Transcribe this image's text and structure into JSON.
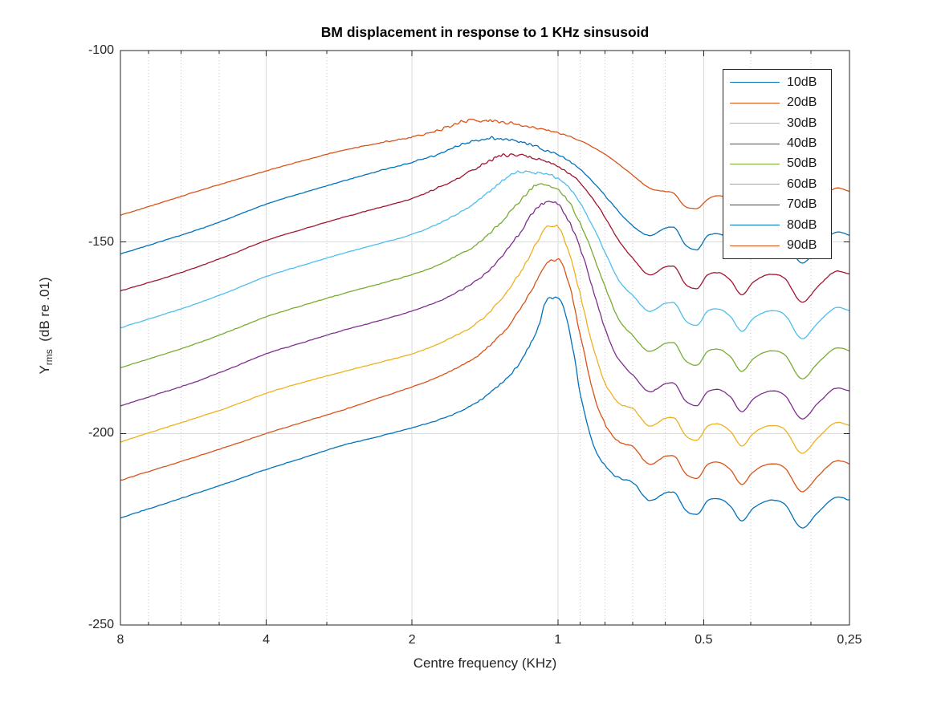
{
  "figure": {
    "title": "BM displacement in response to 1 KHz sinsusoid",
    "xlabel": "Centre frequency (KHz)",
    "ylabel_main": "Y",
    "ylabel_sub": "rms",
    "ylabel_rest": "  (dB re .01)"
  },
  "colors": {
    "background": "#ffffff",
    "axis": "#262626",
    "grid_major": "#dbdbdb",
    "grid_minor": "#c9c9c9",
    "text": "#262626"
  },
  "legend": {
    "position": "upper-right-inside",
    "entries": [
      {
        "label": "10dB",
        "color": "#0072BD"
      },
      {
        "label": "20dB",
        "color": "#D95319"
      },
      {
        "label": "30dB",
        "color": "#EDB120"
      },
      {
        "label": "40dB",
        "color": "#7E2F8E"
      },
      {
        "label": "50dB",
        "color": "#77AC30"
      },
      {
        "label": "60dB",
        "color": "#4DBEEE"
      },
      {
        "label": "70dB",
        "color": "#A2142F"
      },
      {
        "label": "80dB",
        "color": "#0072BD"
      },
      {
        "label": "90dB",
        "color": "#D95319"
      }
    ]
  },
  "chart_data": {
    "type": "line",
    "title": "BM displacement in response to 1 KHz sinsusoid",
    "xlabel": "Centre frequency (KHz)",
    "ylabel": "Y_rms (dB re .01)",
    "x_scale": "log2_reversed",
    "xlim": [
      8,
      0.25
    ],
    "ylim": [
      -250,
      -100
    ],
    "grid": true,
    "x_major_ticks": [
      8,
      4,
      2,
      1,
      0.5,
      0.25
    ],
    "x_major_tick_labels": [
      "8",
      "4",
      "2",
      "1",
      "0.5",
      "0,25"
    ],
    "x_minor_ticks": [
      7,
      6,
      5,
      3,
      0.9,
      0.8,
      0.7,
      0.6,
      0.4,
      0.3
    ],
    "y_major_ticks": [
      -100,
      -150,
      -200,
      -250
    ],
    "y_major_tick_labels": [
      "-100",
      "-150",
      "-200",
      "-250"
    ],
    "x_khz": [
      8,
      6.7,
      5.6,
      4.7,
      4,
      3.35,
      2.8,
      2.35,
      2,
      1.75,
      1.6,
      1.5,
      1.4,
      1.3,
      1.2,
      1.1,
      1.05,
      1,
      0.95,
      0.9,
      0.85,
      0.8,
      0.75,
      0.7,
      0.645,
      0.6,
      0.578,
      0.545,
      0.517,
      0.49,
      0.468,
      0.44,
      0.417,
      0.395,
      0.361,
      0.34,
      0.313,
      0.29,
      0.264,
      0.25
    ],
    "series": [
      {
        "name": "10dB",
        "color": "#0072BD",
        "peak_khz": 1.03,
        "values": [
          -222.0,
          -218.9,
          -215.7,
          -212.5,
          -209.4,
          -206.3,
          -203.2,
          -200.8,
          -198.5,
          -196.3,
          -194.3,
          -192.5,
          -190.0,
          -186.5,
          -181.5,
          -172.5,
          -164.9,
          -164.5,
          -172.0,
          -189.0,
          -202.0,
          -208.3,
          -211.5,
          -212.8,
          -217.6,
          -215.5,
          -215.3,
          -220.0,
          -221.2,
          -217.5,
          -217.0,
          -219.0,
          -222.8,
          -219.5,
          -217.4,
          -218.5,
          -224.7,
          -220.5,
          -216.6,
          -217.4
        ]
      },
      {
        "name": "20dB",
        "color": "#D95319",
        "peak_khz": 1.04,
        "values": [
          -212.2,
          -209.2,
          -206.1,
          -203.0,
          -200.0,
          -197.0,
          -194.0,
          -190.8,
          -187.8,
          -185.0,
          -182.6,
          -180.6,
          -177.6,
          -173.6,
          -167.8,
          -159.5,
          -155.2,
          -154.8,
          -160.5,
          -174.0,
          -188.0,
          -197.5,
          -202.0,
          -203.3,
          -208.1,
          -206.0,
          -205.8,
          -210.5,
          -211.7,
          -208.0,
          -207.5,
          -209.5,
          -213.3,
          -210.0,
          -207.9,
          -209.0,
          -215.2,
          -211.0,
          -207.1,
          -207.9
        ]
      },
      {
        "name": "30dB",
        "color": "#EDB120",
        "peak_khz": 1.05,
        "values": [
          -202.2,
          -199.1,
          -196.0,
          -192.8,
          -189.5,
          -186.6,
          -184.0,
          -181.5,
          -179.2,
          -176.4,
          -174.0,
          -172.0,
          -169.0,
          -164.5,
          -158.3,
          -149.8,
          -145.8,
          -146.3,
          -152.5,
          -163.5,
          -176.5,
          -186.5,
          -192.0,
          -193.4,
          -198.1,
          -196.0,
          -195.8,
          -200.5,
          -201.7,
          -198.0,
          -197.5,
          -199.5,
          -203.3,
          -200.0,
          -197.9,
          -199.0,
          -205.2,
          -201.0,
          -197.1,
          -197.9
        ]
      },
      {
        "name": "40dB",
        "color": "#7E2F8E",
        "peak_khz": 1.07,
        "values": [
          -192.8,
          -189.7,
          -186.5,
          -182.8,
          -179.2,
          -176.2,
          -173.2,
          -170.6,
          -168.0,
          -165.3,
          -162.8,
          -160.8,
          -157.8,
          -153.5,
          -147.8,
          -140.8,
          -139.5,
          -140.3,
          -144.5,
          -151.5,
          -161.5,
          -172.5,
          -180.5,
          -184.7,
          -189.1,
          -187.0,
          -186.8,
          -191.5,
          -192.7,
          -189.0,
          -188.5,
          -190.5,
          -194.3,
          -191.0,
          -188.9,
          -190.0,
          -196.2,
          -192.0,
          -188.1,
          -188.9
        ]
      },
      {
        "name": "50dB",
        "color": "#77AC30",
        "peak_khz": 1.1,
        "values": [
          -182.8,
          -179.8,
          -176.6,
          -173.0,
          -169.5,
          -166.5,
          -163.6,
          -161.0,
          -158.5,
          -155.8,
          -153.3,
          -151.3,
          -148.3,
          -144.3,
          -139.3,
          -135.2,
          -135.5,
          -136.3,
          -139.5,
          -145.0,
          -152.5,
          -161.5,
          -170.0,
          -174.5,
          -178.6,
          -176.5,
          -176.3,
          -181.0,
          -182.2,
          -178.5,
          -178.0,
          -180.0,
          -183.8,
          -180.5,
          -178.4,
          -179.5,
          -185.7,
          -181.5,
          -177.6,
          -178.4
        ]
      },
      {
        "name": "60dB",
        "color": "#4DBEEE",
        "peak_khz": 1.16,
        "values": [
          -172.4,
          -169.4,
          -166.2,
          -162.6,
          -159.0,
          -156.0,
          -153.1,
          -150.5,
          -148.0,
          -145.0,
          -142.4,
          -140.2,
          -137.3,
          -134.0,
          -131.7,
          -131.9,
          -132.4,
          -133.4,
          -135.8,
          -139.8,
          -145.5,
          -152.5,
          -159.8,
          -164.0,
          -168.1,
          -166.0,
          -165.8,
          -170.5,
          -171.7,
          -168.0,
          -167.5,
          -169.5,
          -173.3,
          -170.0,
          -167.9,
          -169.0,
          -175.2,
          -171.0,
          -167.1,
          -167.9
        ]
      },
      {
        "name": "70dB",
        "color": "#A2142F",
        "peak_khz": 1.25,
        "values": [
          -162.8,
          -159.9,
          -156.7,
          -153.1,
          -149.6,
          -146.6,
          -143.7,
          -141.1,
          -138.6,
          -135.6,
          -133.2,
          -131.2,
          -129.1,
          -127.5,
          -127.3,
          -128.3,
          -129.2,
          -130.3,
          -132.0,
          -134.6,
          -138.4,
          -143.4,
          -149.4,
          -154.3,
          -158.6,
          -156.5,
          -156.3,
          -161.0,
          -162.2,
          -158.5,
          -158.0,
          -160.0,
          -163.8,
          -160.5,
          -158.4,
          -159.5,
          -165.7,
          -161.5,
          -157.6,
          -158.4
        ]
      },
      {
        "name": "80dB",
        "color": "#0072BD",
        "peak_khz": 1.33,
        "values": [
          -153.1,
          -150.1,
          -147.0,
          -143.5,
          -140.1,
          -137.1,
          -134.2,
          -131.5,
          -129.2,
          -126.8,
          -124.9,
          -123.8,
          -123.0,
          -123.0,
          -123.8,
          -125.3,
          -126.2,
          -127.3,
          -128.8,
          -131.0,
          -134.0,
          -137.8,
          -142.0,
          -145.8,
          -148.3,
          -146.3,
          -146.1,
          -150.8,
          -152.0,
          -148.3,
          -147.8,
          -149.8,
          -153.6,
          -150.3,
          -148.2,
          -149.3,
          -155.5,
          -151.3,
          -147.4,
          -148.2
        ]
      },
      {
        "name": "90dB",
        "color": "#D95319",
        "peak_khz": 1.5,
        "values": [
          -143.0,
          -140.0,
          -136.9,
          -134.0,
          -131.4,
          -128.7,
          -126.2,
          -124.2,
          -122.6,
          -120.7,
          -118.9,
          -118.2,
          -118.3,
          -118.7,
          -119.4,
          -120.4,
          -120.9,
          -121.5,
          -122.4,
          -123.6,
          -125.1,
          -127.1,
          -129.6,
          -132.6,
          -136.0,
          -136.8,
          -137.2,
          -140.8,
          -141.3,
          -138.8,
          -137.9,
          -139.0,
          -141.9,
          -139.4,
          -137.2,
          -137.9,
          -142.4,
          -139.2,
          -135.9,
          -136.8
        ]
      }
    ]
  }
}
